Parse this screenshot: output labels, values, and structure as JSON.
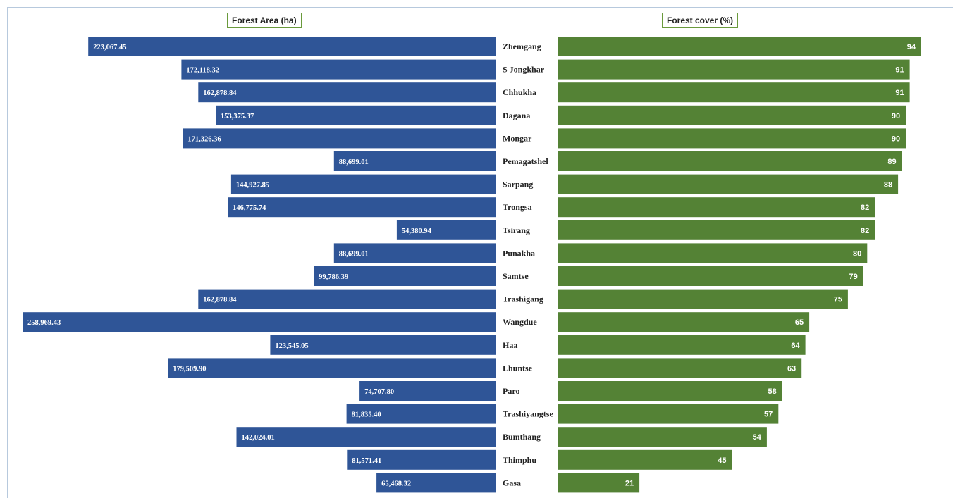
{
  "chart_data": [
    {
      "type": "bar",
      "orientation": "horizontal",
      "direction": "right-to-left",
      "title": "Forest Area (ha)",
      "color": "#2f5597",
      "categories": [
        "Zhemgang",
        "S Jongkhar",
        "Chhukha",
        "Dagana",
        "Mongar",
        "Pemagatshel",
        "Sarpang",
        "Trongsa",
        "Tsirang",
        "Punakha",
        "Samtse",
        "Trashigang",
        "Wangdue",
        "Haa",
        "Lhuntse",
        "Paro",
        "Trashiyangtse",
        "Bumthang",
        "Thimphu",
        "Gasa"
      ],
      "values": [
        223067.45,
        172118.32,
        162878.84,
        153375.37,
        171326.36,
        88699.01,
        144927.85,
        146775.74,
        54380.94,
        88699.01,
        99786.39,
        162878.84,
        258969.43,
        123545.05,
        179509.9,
        74707.8,
        81835.4,
        142024.01,
        81571.41,
        65468.32
      ],
      "labels": [
        "223,067.45",
        "172,118.32",
        "162,878.84",
        "153,375.37",
        "171,326.36",
        "88,699.01",
        "144,927.85",
        "146,775.74",
        "54,380.94",
        "88,699.01",
        "99,786.39",
        "162,878.84",
        "258,969.43",
        "123,545.05",
        "179,509.90",
        "74,707.80",
        "81,835.40",
        "142,024.01",
        "81,571.41",
        "65,468.32"
      ]
    },
    {
      "type": "bar",
      "orientation": "horizontal",
      "direction": "left-to-right",
      "title": "Forest cover (%)",
      "color": "#548235",
      "categories": [
        "Zhemgang",
        "S Jongkhar",
        "Chhukha",
        "Dagana",
        "Mongar",
        "Pemagatshel",
        "Sarpang",
        "Trongsa",
        "Tsirang",
        "Punakha",
        "Samtse",
        "Trashigang",
        "Wangdue",
        "Haa",
        "Lhuntse",
        "Paro",
        "Trashiyangtse",
        "Bumthang",
        "Thimphu",
        "Gasa"
      ],
      "values": [
        94,
        91,
        91,
        90,
        90,
        89,
        88,
        82,
        82,
        80,
        79,
        75,
        65,
        64,
        63,
        58,
        57,
        54,
        45,
        21
      ],
      "labels": [
        "94",
        "91",
        "91",
        "90",
        "90",
        "89",
        "88",
        "82",
        "82",
        "80",
        "79",
        "75",
        "65",
        "64",
        "63",
        "58",
        "57",
        "54",
        "45",
        "21"
      ]
    }
  ]
}
